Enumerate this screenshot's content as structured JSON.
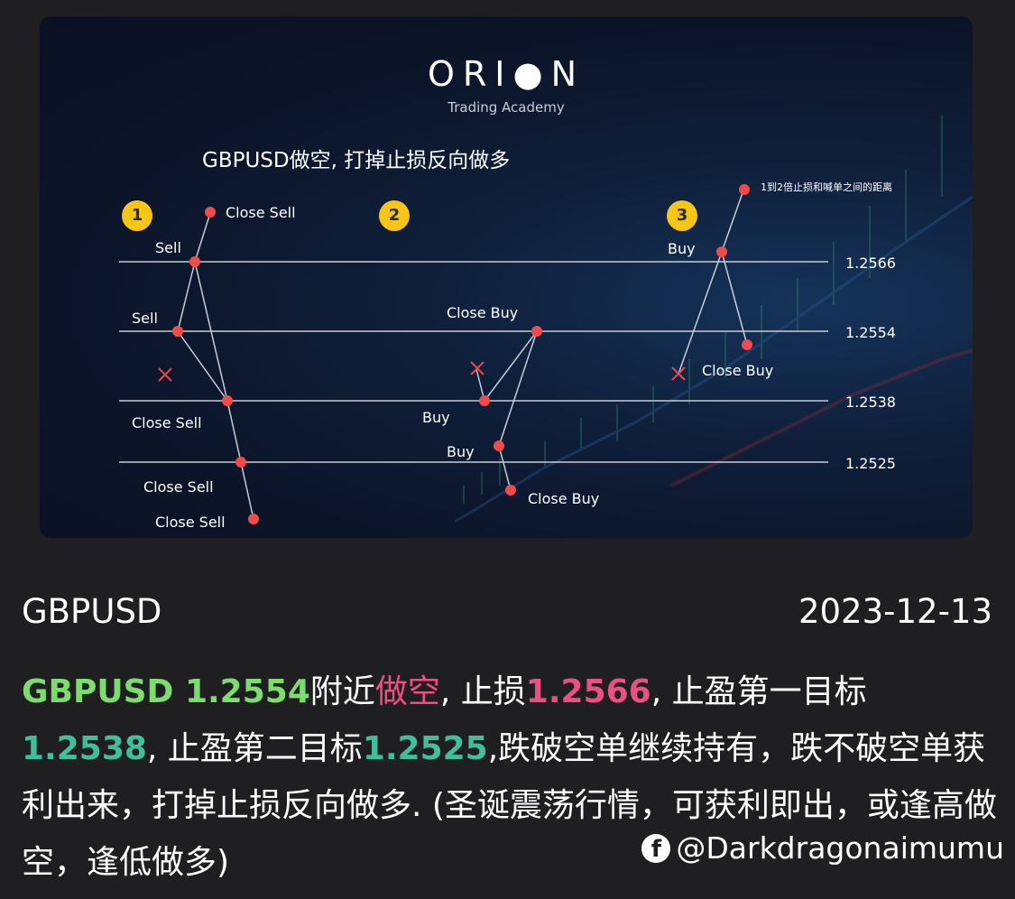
{
  "image": {
    "logo": "ORI●N",
    "logo_sub": "Trading Academy",
    "title": "GBPUSD做空, 打掉止损反向做多",
    "badges": [
      "1",
      "2",
      "3"
    ],
    "price_levels": [
      "1.2566",
      "1.2554",
      "1.2538",
      "1.2525"
    ],
    "labels": {
      "p1_close_sell_top": "Close Sell",
      "p1_sell_1": "Sell",
      "p1_sell_2": "Sell",
      "p1_close_sell_a": "Close Sell",
      "p1_close_sell_b": "Close Sell",
      "p1_close_sell_c": "Close Sell",
      "p2_close_buy_top": "Close Buy",
      "p2_buy_1": "Buy",
      "p2_buy_2": "Buy",
      "p2_close_buy_bottom": "Close Buy",
      "p3_buy": "Buy",
      "p3_close_buy": "Close Buy",
      "p3_note": "1到2倍止损和喊单之间的距离"
    },
    "colors": {
      "dot": "#f04b4b",
      "badge": "#f5c518",
      "line": "#c8ccd4"
    }
  },
  "post": {
    "symbol": "GBPUSD",
    "date": "2023-12-13",
    "segments": {
      "s1": "GBPUSD 1.2554",
      "s2": "附近",
      "s3": "做空",
      "s4": ", 止损",
      "s5": "1.2566",
      "s6": ", 止盈第一目标 ",
      "s7": "1.2538",
      "s8": ", 止盈第二目标",
      "s9": "1.2525",
      "s10": ",跌破空单继续持有，跌不破空单获利出来，打掉止损反向做多. (圣诞震荡行情，可获利即出，或逢高做空，逢低做多)"
    },
    "colors": {
      "green": "#7ddc6e",
      "pink": "#ea4f86",
      "teal": "#3fbf9b"
    }
  },
  "watermark": {
    "icon": "facebook-icon",
    "handle": "@Darkdragonaimumu"
  }
}
